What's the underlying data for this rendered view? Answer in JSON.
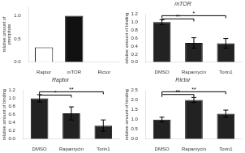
{
  "chart_data": [
    {
      "type": "bar",
      "categories": [
        "Raptor",
        "mTOR",
        "Rictor"
      ],
      "values": [
        0.32,
        1.0,
        0.0
      ],
      "colors": [
        "#ffffff",
        "#111111",
        "#ffffff"
      ],
      "ylabel": "relative amount of\nprecipitate",
      "ylim": [
        0,
        1.2
      ],
      "yticks": [
        {
          "value": 0,
          "label": "0.0"
        },
        0.5,
        {
          "value": 1.0,
          "label": "1.0"
        }
      ],
      "grid": false
    },
    {
      "type": "bar",
      "title": "mTOR",
      "categories": [
        "DMSO",
        "Rapamycin",
        "Torin1"
      ],
      "values": [
        1.0,
        0.48,
        0.47
      ],
      "errors": [
        0.06,
        0.13,
        0.12
      ],
      "color": "#222222",
      "ylabel": "relative amount of binding",
      "ylim": [
        0,
        1.2
      ],
      "yticks": [
        {
          "value": 0,
          "label": "0.0"
        },
        0.2,
        0.4,
        0.6,
        0.8,
        {
          "value": 1.0,
          "label": "1.0"
        },
        1.2
      ],
      "grid": false,
      "annotations": [
        {
          "x1": 0,
          "x2": 1,
          "y": 1.08,
          "label": "**"
        },
        {
          "x1": 0,
          "x2": 2,
          "y": 1.16,
          "label": "*"
        }
      ]
    },
    {
      "type": "bar",
      "title": "Raptor",
      "categories": [
        "DMSO",
        "Rapamycin",
        "Torin1"
      ],
      "values": [
        1.0,
        0.63,
        0.33
      ],
      "errors": [
        0.09,
        0.16,
        0.14
      ],
      "color": "#222222",
      "ylabel": "relative amount of binding",
      "ylim": [
        0,
        1.2
      ],
      "yticks": [
        {
          "value": 0,
          "label": "0.0"
        },
        0.2,
        0.4,
        0.6,
        0.8,
        {
          "value": 1.0,
          "label": "1.0"
        },
        1.2
      ],
      "grid": false,
      "annotations": [
        {
          "x1": 0,
          "x2": 1,
          "y": 1.08,
          "label": "*"
        },
        {
          "x1": 0,
          "x2": 2,
          "y": 1.16,
          "label": "**"
        }
      ]
    },
    {
      "type": "bar",
      "title": "Rictor",
      "categories": [
        "DMSO",
        "Rapamycin",
        "Torin1"
      ],
      "values": [
        1.0,
        2.0,
        1.3
      ],
      "errors": [
        0.12,
        0.13,
        0.18
      ],
      "color": "#222222",
      "ylabel": "relative amount of binding",
      "ylim": [
        0,
        2.5
      ],
      "yticks": [
        {
          "value": 0,
          "label": "0.0"
        },
        0.5,
        {
          "value": 1.0,
          "label": "1.0"
        },
        1.5,
        {
          "value": 2.0,
          "label": "2.0"
        },
        2.5
      ],
      "grid": false,
      "annotations": [
        {
          "x1": 0,
          "x2": 1,
          "y": 2.28,
          "label": "**"
        },
        {
          "x1": 0,
          "x2": 2,
          "y": 2.42,
          "label": "**"
        }
      ]
    }
  ]
}
